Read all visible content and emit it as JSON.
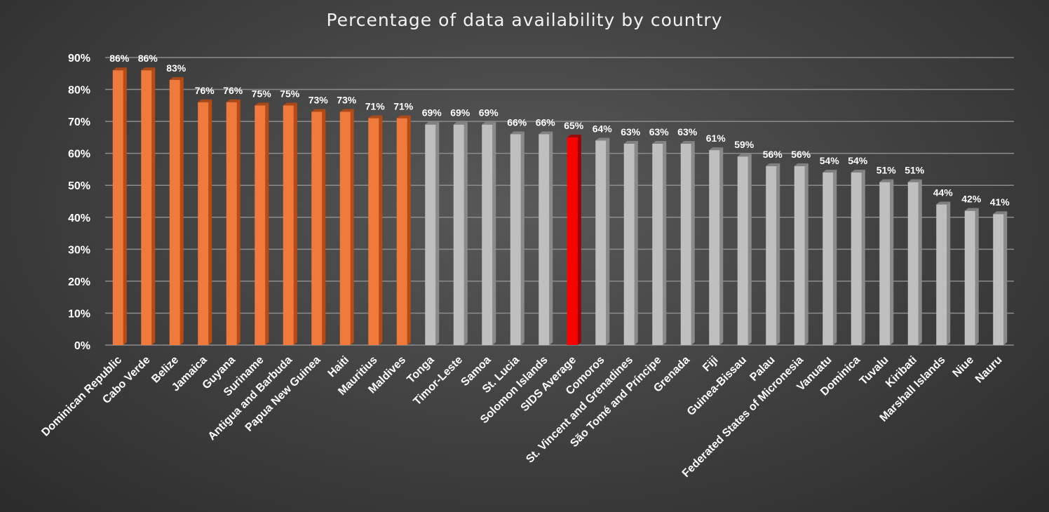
{
  "chart_data": {
    "type": "bar",
    "title": "Percentage of data availability by country",
    "xlabel": "",
    "ylabel": "",
    "ylim": [
      0,
      90
    ],
    "yticks": [
      "0%",
      "10%",
      "20%",
      "30%",
      "40%",
      "50%",
      "60%",
      "70%",
      "80%",
      "90%"
    ],
    "grid": true,
    "legend": "none",
    "categories": [
      "Dominican Republic",
      "Cabo Verde",
      "Belize",
      "Jamaica",
      "Guyana",
      "Suriname",
      "Antigua and Barbuda",
      "Papua New Guinea",
      "Haiti",
      "Mauritius",
      "Maldives",
      "Tonga",
      "Timor-Leste",
      "Samoa",
      "St. Lucia",
      "Solomon Islands",
      "SIDS Average",
      "Comoros",
      "St. Vincent and Grenadines",
      "São Tomé and Príncipe",
      "Grenada",
      "Fiji",
      "Guinea-Bissau",
      "Palau",
      "Federated States of Micronesia",
      "Vanuatu",
      "Dominica",
      "Tuvalu",
      "Kiribati",
      "Marshall Islands",
      "Niue",
      "Nauru"
    ],
    "values": [
      86,
      86,
      83,
      76,
      76,
      75,
      75,
      73,
      73,
      71,
      71,
      69,
      69,
      69,
      66,
      66,
      65,
      64,
      63,
      63,
      63,
      61,
      59,
      56,
      56,
      54,
      54,
      51,
      51,
      44,
      42,
      41
    ],
    "data_labels": [
      "86%",
      "86%",
      "83%",
      "76%",
      "76%",
      "75%",
      "75%",
      "73%",
      "73%",
      "71%",
      "71%",
      "69%",
      "69%",
      "69%",
      "66%",
      "66%",
      "65%",
      "64%",
      "63%",
      "63%",
      "63%",
      "61%",
      "59%",
      "56%",
      "56%",
      "54%",
      "54%",
      "51%",
      "51%",
      "44%",
      "42%",
      "41%"
    ],
    "bar_groups": [
      "above",
      "above",
      "above",
      "above",
      "above",
      "above",
      "above",
      "above",
      "above",
      "above",
      "above",
      "below",
      "below",
      "below",
      "below",
      "below",
      "average",
      "below",
      "below",
      "below",
      "below",
      "below",
      "below",
      "below",
      "below",
      "below",
      "below",
      "below",
      "below",
      "below",
      "below",
      "below"
    ],
    "colors": {
      "above": "#f07a3c",
      "above_dark": "#b84a12",
      "below": "#bfbfbf",
      "below_dark": "#8a8a8a",
      "average": "#ff0000",
      "average_dark": "#a00000",
      "gridline": "#8c8c8c",
      "text": "#ffffff"
    }
  }
}
